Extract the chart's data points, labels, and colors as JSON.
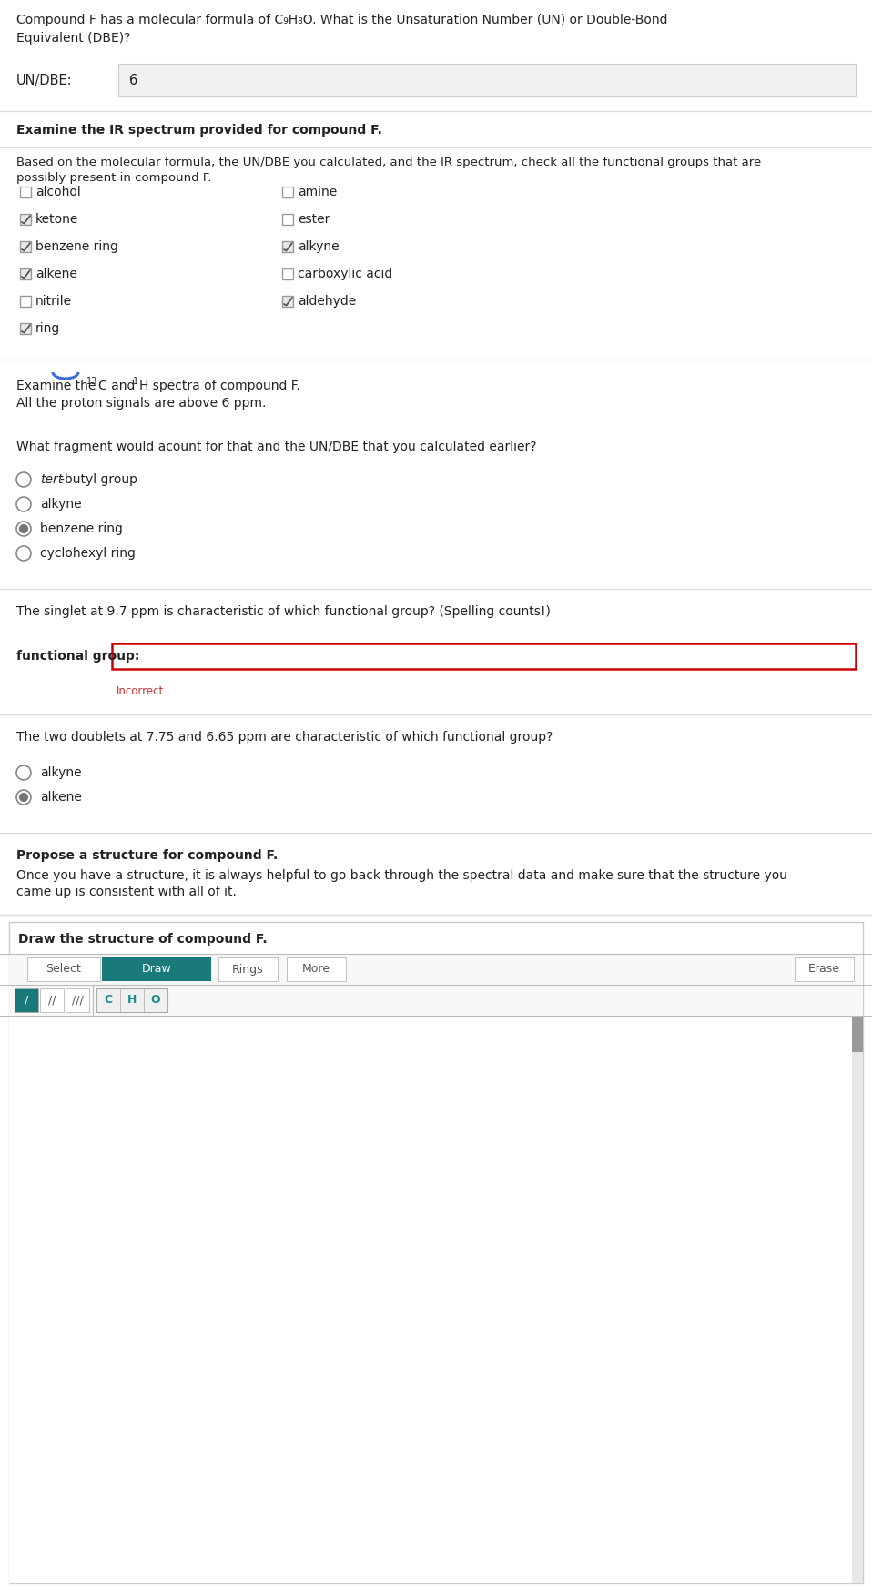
{
  "bg_color": "#ffffff",
  "title_line1": "Compound F has a molecular formula of C₉H₈O. What is the Unsaturation Number (UN) or Double-Bond",
  "title_line2": "Equivalent (DBE)?",
  "undbe_label": "UN/DBE:",
  "undbe_value": "6",
  "section2_title": "Examine the IR spectrum provided for compound F.",
  "section3_line1": "Based on the molecular formula, the UN/DBE you calculated, and the IR spectrum, check all the functional groups that are",
  "section3_line2": "possibly present in compound F.",
  "checkboxes_left": [
    {
      "label": "alcohol",
      "checked": false
    },
    {
      "label": "ketone",
      "checked": true
    },
    {
      "label": "benzene ring",
      "checked": true
    },
    {
      "label": "alkene",
      "checked": true
    },
    {
      "label": "nitrile",
      "checked": false
    },
    {
      "label": "ring",
      "checked": true
    }
  ],
  "checkboxes_right": [
    {
      "label": "amine",
      "checked": false
    },
    {
      "label": "ester",
      "checked": false
    },
    {
      "label": "alkyne",
      "checked": true
    },
    {
      "label": "carboxylic acid",
      "checked": false
    },
    {
      "label": "aldehyde",
      "checked": true
    }
  ],
  "section4_line1": "Examine the ¹³C and ¹H spectra of compound F.",
  "section4_line2": "All the proton signals are above 6 ppm.",
  "section5_question": "What fragment would acount for that and the UN/DBE that you calculated earlier?",
  "radio_options": [
    {
      "label": "tert-butyl group",
      "italic_prefix": "tert",
      "rest": "-butyl group",
      "selected": false
    },
    {
      "label": "alkyne",
      "italic_prefix": "",
      "rest": "alkyne",
      "selected": false
    },
    {
      "label": "benzene ring",
      "italic_prefix": "",
      "rest": "benzene ring",
      "selected": true
    },
    {
      "label": "cyclohexyl ring",
      "italic_prefix": "",
      "rest": "cyclohexyl ring",
      "selected": false
    }
  ],
  "section6_question": "The singlet at 9.7 ppm is characteristic of which functional group? (Spelling counts!)",
  "functional_group_label": "functional group:",
  "incorrect_text": "Incorrect",
  "section7_question": "The two doublets at 7.75 and 6.65 ppm are characteristic of which functional group?",
  "radio_options2": [
    {
      "label": "alkyne",
      "selected": false
    },
    {
      "label": "alkene",
      "selected": true
    }
  ],
  "section8_title": "Propose a structure for compound F.",
  "section8_line1": "Once you have a structure, it is always helpful to go back through the spectral data and make sure that the structure you",
  "section8_line2": "came up is consistent with all of it.",
  "draw_box_title": "Draw the structure of compound F.",
  "draw_buttons": [
    "Select",
    "Draw",
    "Rings",
    "More",
    "Erase"
  ],
  "draw_button_active_idx": 1,
  "draw_atom_buttons": [
    "C",
    "H",
    "O"
  ],
  "toolbar_bg": "#1a8c8c",
  "canvas_bg": "#f8f8f8",
  "btn_active_color": "#1a7a7a",
  "btn_inactive_color": "#ffffff",
  "scrollbar_color": "#888888",
  "scrollbar_bg": "#dddddd"
}
